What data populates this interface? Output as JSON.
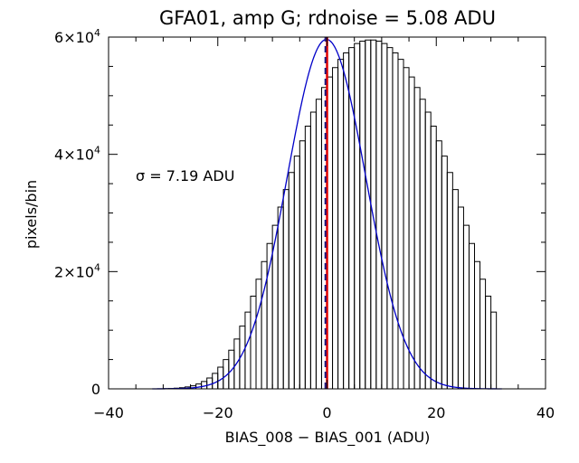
{
  "chart_data": {
    "type": "histogram",
    "title": "GFA01, amp G; rdnoise = 5.08 ADU",
    "xlabel": "BIAS_008 − BIAS_001 (ADU)",
    "ylabel": "pixels/bin",
    "xlim": [
      -40,
      40
    ],
    "ylim": [
      0,
      60000
    ],
    "x_ticks": [
      {
        "value": -40,
        "label": "−40"
      },
      {
        "value": -20,
        "label": "−20"
      },
      {
        "value": 0,
        "label": "0"
      },
      {
        "value": 20,
        "label": "20"
      },
      {
        "value": 40,
        "label": "40"
      }
    ],
    "y_ticks": [
      {
        "value": 0,
        "mant": "0",
        "exp": ""
      },
      {
        "value": 20000,
        "mant": "2×10",
        "exp": "4"
      },
      {
        "value": 40000,
        "mant": "4×10",
        "exp": "4"
      },
      {
        "value": 60000,
        "mant": "6×10",
        "exp": "4"
      }
    ],
    "annotation": "σ = 7.19 ADU",
    "sigma": 7.19,
    "histogram": {
      "color": "#000000",
      "bin_width": 1,
      "bin_edges_start": -30,
      "counts": [
        30,
        60,
        110,
        190,
        320,
        520,
        820,
        1250,
        1850,
        2650,
        3700,
        5000,
        6600,
        8500,
        10700,
        13100,
        15800,
        18700,
        21700,
        24800,
        27900,
        31000,
        34000,
        36900,
        39700,
        42300,
        44800,
        47200,
        49400,
        51400,
        53200,
        54800,
        56200,
        57300,
        58200,
        58900,
        59300,
        59500,
        59500,
        59300,
        58900,
        58200,
        57300,
        56200,
        54800,
        53200,
        51400,
        49400,
        47200,
        44800,
        42300,
        39700,
        36900,
        34000,
        31000,
        27900,
        24800,
        21700,
        18700,
        15800,
        13100
      ]
    },
    "fit": {
      "name": "gaussian",
      "color": "#0000c8",
      "amplitude": 59600,
      "mean": -0.1,
      "sigma": 7.19
    },
    "markers": [
      {
        "name": "mean",
        "x": 0,
        "color": "#e00000",
        "style": "solid"
      },
      {
        "name": "median",
        "x": -0.3,
        "color": "#1a1a80",
        "style": "dashed"
      }
    ]
  }
}
